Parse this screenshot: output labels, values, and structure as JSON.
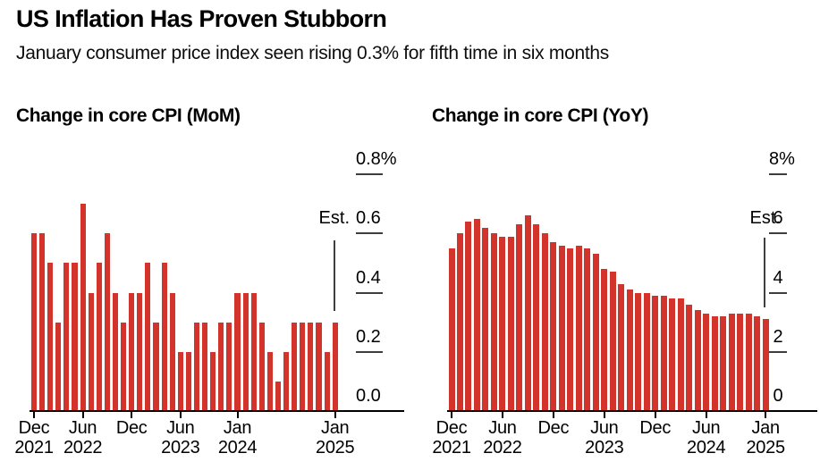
{
  "header": {
    "title": "US Inflation Has Proven Stubborn",
    "subtitle": "January consumer price index seen rising 0.3% for fifth time in six months"
  },
  "colors": {
    "bar": "#d2332b",
    "baseline": "#000000",
    "gridline_dash": "#3d3d3d",
    "estimate_line": "#3f3f3f",
    "text": "#000000",
    "background": "#ffffff"
  },
  "chart_data": [
    {
      "type": "bar",
      "title": "Change in core CPI (MoM)",
      "unit": "%",
      "categories": [
        "Dec 2021",
        "Jan 2022",
        "Feb 2022",
        "Mar 2022",
        "Apr 2022",
        "May 2022",
        "Jun 2022",
        "Jul 2022",
        "Aug 2022",
        "Sep 2022",
        "Oct 2022",
        "Nov 2022",
        "Dec 2022",
        "Jan 2023",
        "Feb 2023",
        "Mar 2023",
        "Apr 2023",
        "May 2023",
        "Jun 2023",
        "Jul 2023",
        "Aug 2023",
        "Sep 2023",
        "Oct 2023",
        "Nov 2023",
        "Dec 2023",
        "Jan 2024",
        "Feb 2024",
        "Mar 2024",
        "Apr 2024",
        "May 2024",
        "Jun 2024",
        "Jul 2024",
        "Aug 2024",
        "Sep 2024",
        "Oct 2024",
        "Nov 2024",
        "Dec 2024",
        "Jan 2025"
      ],
      "values": [
        0.6,
        0.6,
        0.5,
        0.3,
        0.5,
        0.5,
        0.7,
        0.4,
        0.5,
        0.6,
        0.4,
        0.3,
        0.4,
        0.4,
        0.5,
        0.3,
        0.5,
        0.4,
        0.2,
        0.2,
        0.3,
        0.3,
        0.2,
        0.3,
        0.3,
        0.4,
        0.4,
        0.4,
        0.3,
        0.2,
        0.1,
        0.2,
        0.3,
        0.3,
        0.3,
        0.3,
        0.2,
        0.3
      ],
      "ylim": [
        0,
        0.8
      ],
      "grid": "right-side tick dashes",
      "legend_position": "none",
      "yticks": [
        {
          "label": "0.8%",
          "value": 0.8
        },
        {
          "label": "0.6",
          "value": 0.6
        },
        {
          "label": "0.4",
          "value": 0.4
        },
        {
          "label": "0.2",
          "value": 0.2
        },
        {
          "label": "0.0",
          "value": 0.0
        }
      ],
      "xticks": [
        {
          "month_index": 0,
          "line1": "Dec",
          "line2": "2021"
        },
        {
          "month_index": 6,
          "line1": "Jun",
          "line2": "2022"
        },
        {
          "month_index": 12,
          "line1": "Dec",
          "line2": ""
        },
        {
          "month_index": 18,
          "line1": "Jun",
          "line2": "2023"
        },
        {
          "month_index": 25,
          "line1": "Jan",
          "line2": "2024"
        },
        {
          "month_index": 37,
          "line1": "Jan",
          "line2": "2025"
        }
      ],
      "estimate": {
        "label": "Est.",
        "month_index": 37,
        "value": 0.3
      }
    },
    {
      "type": "bar",
      "title": "Change in core CPI (YoY)",
      "unit": "%",
      "categories": [
        "Dec 2021",
        "Jan 2022",
        "Feb 2022",
        "Mar 2022",
        "Apr 2022",
        "May 2022",
        "Jun 2022",
        "Jul 2022",
        "Aug 2022",
        "Sep 2022",
        "Oct 2022",
        "Nov 2022",
        "Dec 2022",
        "Jan 2023",
        "Feb 2023",
        "Mar 2023",
        "Apr 2023",
        "May 2023",
        "Jun 2023",
        "Jul 2023",
        "Aug 2023",
        "Sep 2023",
        "Oct 2023",
        "Nov 2023",
        "Dec 2023",
        "Jan 2024",
        "Feb 2024",
        "Mar 2024",
        "Apr 2024",
        "May 2024",
        "Jun 2024",
        "Jul 2024",
        "Aug 2024",
        "Sep 2024",
        "Oct 2024",
        "Nov 2024",
        "Dec 2024",
        "Jan 2025"
      ],
      "values": [
        5.5,
        6.0,
        6.4,
        6.5,
        6.2,
        6.0,
        5.9,
        5.9,
        6.3,
        6.6,
        6.3,
        6.0,
        5.7,
        5.6,
        5.5,
        5.6,
        5.5,
        5.3,
        4.8,
        4.7,
        4.3,
        4.1,
        4.0,
        4.0,
        3.9,
        3.9,
        3.8,
        3.8,
        3.6,
        3.4,
        3.3,
        3.2,
        3.2,
        3.3,
        3.3,
        3.3,
        3.2,
        3.1
      ],
      "ylim": [
        0,
        8
      ],
      "grid": "right-side tick dashes",
      "legend_position": "none",
      "yticks": [
        {
          "label": "8%",
          "value": 8
        },
        {
          "label": "6",
          "value": 6
        },
        {
          "label": "4",
          "value": 4
        },
        {
          "label": "2",
          "value": 2
        },
        {
          "label": "0",
          "value": 0
        }
      ],
      "xticks": [
        {
          "month_index": 0,
          "line1": "Dec",
          "line2": "2021"
        },
        {
          "month_index": 6,
          "line1": "Jun",
          "line2": "2022"
        },
        {
          "month_index": 12,
          "line1": "Dec",
          "line2": ""
        },
        {
          "month_index": 18,
          "line1": "Jun",
          "line2": "2023"
        },
        {
          "month_index": 24,
          "line1": "Dec",
          "line2": ""
        },
        {
          "month_index": 30,
          "line1": "Jun",
          "line2": "2024"
        },
        {
          "month_index": 37,
          "line1": "Jan",
          "line2": "2025"
        }
      ],
      "estimate": {
        "label": "Est.",
        "month_index": 37,
        "value": 3.1
      }
    }
  ]
}
